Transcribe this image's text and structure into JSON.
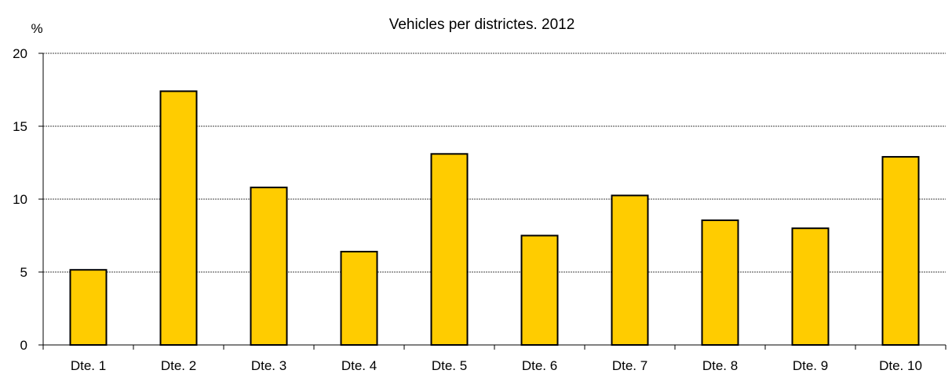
{
  "chart_data": {
    "type": "bar",
    "title": "Vehicles per districtes. 2012",
    "ylabel": "%",
    "xlabel": "",
    "categories": [
      "Dte. 1",
      "Dte. 2",
      "Dte. 3",
      "Dte. 4",
      "Dte. 5",
      "Dte. 6",
      "Dte. 7",
      "Dte. 8",
      "Dte. 9",
      "Dte. 10"
    ],
    "values": [
      5.15,
      17.4,
      10.8,
      6.4,
      13.1,
      7.5,
      10.25,
      8.55,
      8.0,
      12.9
    ],
    "ylim": [
      0,
      20
    ],
    "yticks": [
      0,
      5,
      10,
      15,
      20
    ],
    "grid": true,
    "colors": {
      "bar_fill": "#ffcc00",
      "bar_stroke": "#000000",
      "grid": "#808080",
      "axis": "#000000",
      "text": "#000000"
    }
  }
}
